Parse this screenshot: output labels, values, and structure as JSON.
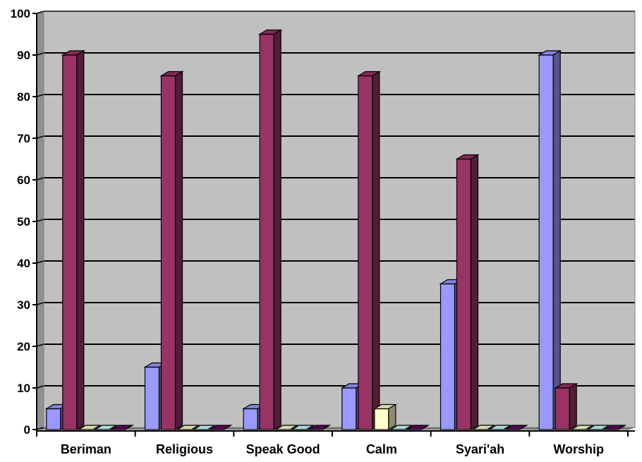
{
  "chart_data": {
    "type": "bar",
    "title": "",
    "xlabel": "",
    "ylabel": "",
    "ylim": [
      0,
      100
    ],
    "yticks": [
      0,
      10,
      20,
      30,
      40,
      50,
      60,
      70,
      80,
      90,
      100
    ],
    "categories": [
      "Beriman",
      "Religious",
      "Speak Good",
      "Calm",
      "Syari'ah",
      "Worship"
    ],
    "series": [
      {
        "values": [
          5,
          15,
          5,
          10,
          35,
          90
        ],
        "color": "#9999FF"
      },
      {
        "values": [
          90,
          85,
          95,
          85,
          65,
          10
        ],
        "color": "#993366"
      },
      {
        "values": [
          0,
          0,
          0,
          5,
          0,
          0
        ],
        "color": "#FFFFCC"
      },
      {
        "values": [
          0,
          0,
          0,
          0,
          0,
          0
        ],
        "color": "#CCFFFF"
      },
      {
        "values": [
          0,
          0,
          0,
          0,
          0,
          0
        ],
        "color": "#660066"
      }
    ],
    "grid": true,
    "legend": "none",
    "style": "3d-column",
    "background_color": "#C0C0C0"
  }
}
